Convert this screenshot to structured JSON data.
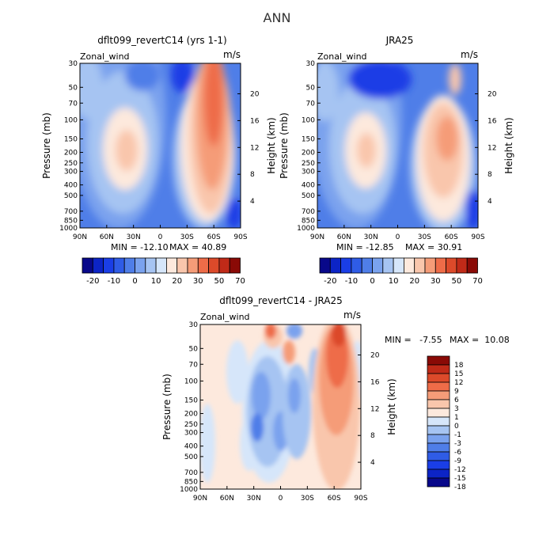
{
  "page": {
    "title": "ANN"
  },
  "axes": {
    "pressure_label": "Pressure (mb)",
    "height_label": "Height (km)",
    "pressure_ticks": [
      "30",
      "50",
      "70",
      "100",
      "150",
      "200",
      "250",
      "300",
      "400",
      "500",
      "700",
      "850",
      "1000"
    ],
    "height_ticks": [
      "4",
      "8",
      "12",
      "16",
      "20"
    ],
    "lat_ticks": [
      "90N",
      "60N",
      "30N",
      "0",
      "30S",
      "60S",
      "90S"
    ]
  },
  "panels": [
    {
      "id": "model",
      "title": "dflt099_revertC14 (yrs 1-1)",
      "field_label": "Zonal_wind",
      "units": "m/s",
      "min_label": "MIN = -12.10",
      "max_label": "MAX = 40.89"
    },
    {
      "id": "obs",
      "title": "JRA25",
      "field_label": "Zonal_wind",
      "units": "m/s",
      "min_label": "MIN = -12.85",
      "max_label": "MAX = 30.91"
    },
    {
      "id": "diff",
      "title": "dflt099_revertC14 - JRA25",
      "field_label": "Zonal_wind",
      "units": "m/s",
      "min_label": "MIN =   -7.55",
      "max_label": "MAX =  10.08"
    }
  ],
  "chart_data": [
    {
      "type": "heatmap",
      "title": "dflt099_revertC14 (yrs 1-1)",
      "xlabel": "",
      "ylabel": "Pressure (mb)",
      "xlim": [
        "90N",
        "90S"
      ],
      "ylim": [
        1000,
        30
      ],
      "levels": [
        -20,
        -15,
        -10,
        -5,
        0,
        5,
        10,
        15,
        20,
        25,
        30,
        40,
        50,
        60,
        70
      ],
      "min": -12.1,
      "max": 40.89
    },
    {
      "type": "heatmap",
      "title": "JRA25",
      "xlabel": "",
      "ylabel": "Pressure (mb)",
      "xlim": [
        "90N",
        "90S"
      ],
      "ylim": [
        1000,
        30
      ],
      "levels": [
        -20,
        -15,
        -10,
        -5,
        0,
        5,
        10,
        15,
        20,
        25,
        30,
        40,
        50,
        60,
        70
      ],
      "min": -12.85,
      "max": 30.91
    },
    {
      "type": "heatmap",
      "title": "dflt099_revertC14 - JRA25",
      "xlabel": "",
      "ylabel": "Pressure (mb)",
      "xlim": [
        "90N",
        "90S"
      ],
      "ylim": [
        1000,
        30
      ],
      "levels": [
        -18,
        -15,
        -12,
        -9,
        -6,
        -3,
        -1,
        0,
        1,
        3,
        6,
        9,
        12,
        15,
        18
      ],
      "min": -7.55,
      "max": 10.08
    }
  ],
  "colorbars": {
    "main": {
      "labels": [
        "-20",
        "-10",
        "0",
        "10",
        "20",
        "30",
        "50",
        "70"
      ],
      "colors": [
        "#08088a",
        "#0c24c6",
        "#1a3ee6",
        "#2f5ce6",
        "#4f7ee8",
        "#7aa2ee",
        "#a6c4f2",
        "#d6e6fa",
        "#fde9dd",
        "#f9c6ac",
        "#f59c78",
        "#ee6c48",
        "#dc4a2a",
        "#c02a18",
        "#8a0a06"
      ]
    },
    "diff": {
      "labels": [
        "18",
        "15",
        "12",
        "9",
        "6",
        "3",
        "1",
        "0",
        "-1",
        "-3",
        "-6",
        "-9",
        "-12",
        "-15",
        "-18"
      ],
      "colors": [
        "#8a0a06",
        "#c02a18",
        "#dc4a2a",
        "#ee6c48",
        "#f59c78",
        "#f9c6ac",
        "#fde9dd",
        "#d6e6fa",
        "#a6c4f2",
        "#7aa2ee",
        "#4f7ee8",
        "#2f5ce6",
        "#1a3ee6",
        "#0c24c6",
        "#08088a"
      ]
    }
  }
}
